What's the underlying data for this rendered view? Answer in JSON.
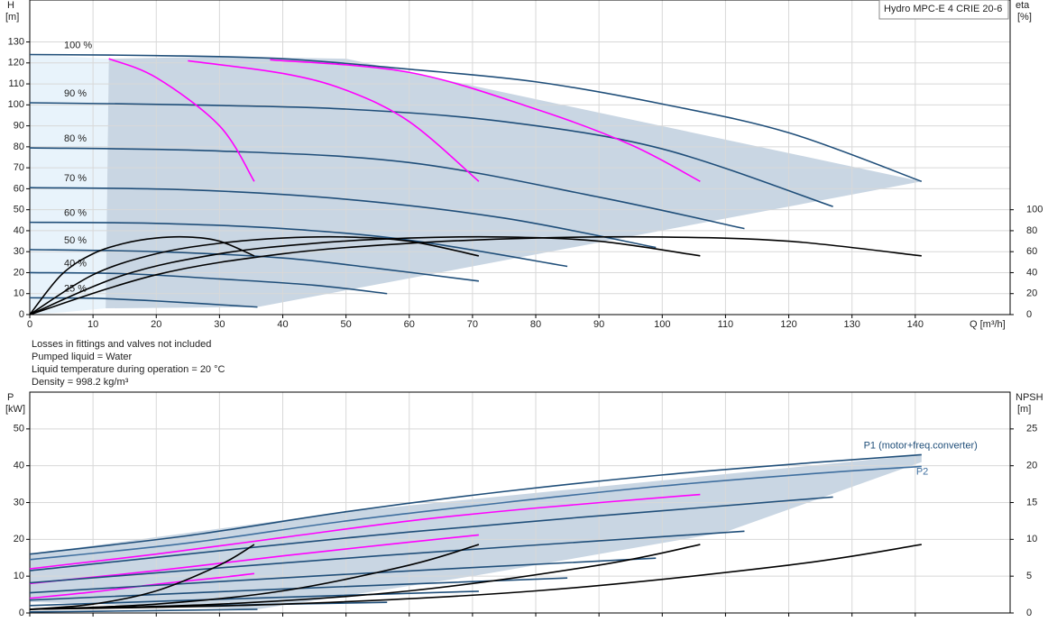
{
  "chart_data": [
    {
      "type": "line",
      "title": "Hydro MPC-E 4 CRIE 20-6",
      "ylabel": "H",
      "yunit": "[m]",
      "y2label": "eta",
      "y2unit": "[%]",
      "xlabel": "Q [m³/h]",
      "xlim": [
        0,
        155
      ],
      "xticks": [
        0,
        10,
        20,
        30,
        40,
        50,
        60,
        70,
        80,
        90,
        100,
        110,
        120,
        130,
        140
      ],
      "ylim": [
        0,
        150
      ],
      "yticks": [
        0,
        10,
        20,
        30,
        40,
        50,
        60,
        70,
        80,
        90,
        100,
        110,
        120,
        130
      ],
      "y2lim": [
        0,
        300
      ],
      "y2ticks": [
        0,
        20,
        40,
        60,
        80,
        100
      ],
      "grid": true,
      "show_xtick_labels": true,
      "areas": [
        {
          "color": "#e8f3fb",
          "x": [
            0,
            0,
            12.5,
            12,
            5
          ],
          "values": [
            0,
            124,
            122,
            3,
            1
          ]
        },
        {
          "color": "#c9d6e3",
          "x": [
            12,
            12.5,
            30,
            50,
            141,
            36,
            12
          ],
          "values": [
            3,
            122,
            123,
            122,
            63.5,
            3.6,
            3
          ]
        }
      ],
      "series": [
        {
          "name": "100 %",
          "color": "#1f4e79",
          "x": [
            0,
            20,
            40,
            60,
            80,
            100,
            120,
            141
          ],
          "values": [
            124,
            123.5,
            122,
            117,
            111,
            100.4,
            86.7,
            63.5
          ]
        },
        {
          "name": "90 %",
          "color": "#1f4e79",
          "x": [
            0,
            25,
            50,
            75,
            100,
            127
          ],
          "values": [
            101,
            100,
            98,
            92,
            79,
            51.5
          ]
        },
        {
          "name": "80 %",
          "color": "#1f4e79",
          "x": [
            0,
            30,
            60,
            90,
            113
          ],
          "values": [
            79.5,
            78,
            72.5,
            56,
            41
          ]
        },
        {
          "name": "70 %",
          "color": "#1f4e79",
          "x": [
            0,
            25,
            50,
            75,
            99
          ],
          "values": [
            60.5,
            59.5,
            55,
            46,
            32
          ]
        },
        {
          "name": "60 %",
          "color": "#1f4e79",
          "x": [
            0,
            20,
            40,
            60,
            85
          ],
          "values": [
            44,
            43.5,
            41,
            35.5,
            23
          ]
        },
        {
          "name": "50 %",
          "color": "#1f4e79",
          "x": [
            0,
            20,
            40,
            55,
            71
          ],
          "values": [
            31,
            30,
            27,
            22,
            16
          ]
        },
        {
          "name": "40 %",
          "color": "#1f4e79",
          "x": [
            0,
            15,
            30,
            45,
            56.5
          ],
          "values": [
            20,
            19.5,
            17,
            14,
            10
          ]
        },
        {
          "name": "25 %",
          "color": "#1f4e79",
          "x": [
            0,
            10,
            20,
            36
          ],
          "values": [
            8,
            7.8,
            6.5,
            3.6
          ]
        },
        {
          "color": "#ff00ff",
          "x": [
            12.5,
            20,
            30,
            35.5
          ],
          "values": [
            122,
            113,
            90,
            63.5
          ]
        },
        {
          "color": "#ff00ff",
          "x": [
            25,
            40,
            50,
            60,
            71
          ],
          "values": [
            121,
            115,
            107,
            92,
            63.5
          ]
        },
        {
          "color": "#ff00ff",
          "x": [
            38,
            60,
            80,
            95,
            106
          ],
          "values": [
            121.5,
            115.5,
            98,
            81,
            63.5
          ]
        },
        {
          "color": "#000000",
          "axis": "y2",
          "x": [
            0,
            5,
            10,
            15,
            20,
            25,
            30,
            35.5
          ],
          "values": [
            0,
            38,
            58,
            68,
            73,
            74,
            70,
            56
          ]
        },
        {
          "color": "#000000",
          "axis": "y2",
          "x": [
            0,
            10,
            20,
            30,
            40,
            50,
            60,
            71
          ],
          "values": [
            0,
            38,
            58,
            68,
            73,
            74,
            70,
            56
          ]
        },
        {
          "color": "#000000",
          "axis": "y2",
          "x": [
            0,
            15,
            30,
            45,
            60,
            75,
            90,
            106
          ],
          "values": [
            0,
            38,
            58,
            68,
            73,
            74,
            70,
            56
          ]
        },
        {
          "color": "#000000",
          "axis": "y2",
          "x": [
            0,
            20,
            40,
            60,
            80,
            100,
            120,
            141
          ],
          "values": [
            0,
            38,
            58,
            68,
            73,
            74,
            70,
            56
          ]
        }
      ]
    },
    {
      "type": "line",
      "ylabel": "P",
      "yunit": "[kW]",
      "y2label": "NPSH",
      "y2unit": "[m]",
      "xlim": [
        0,
        155
      ],
      "xticks": [
        0,
        10,
        20,
        30,
        40,
        50,
        60,
        70,
        80,
        90,
        100,
        110,
        120,
        130,
        140
      ],
      "ylim": [
        0,
        60
      ],
      "yticks": [
        0,
        10,
        20,
        30,
        40,
        50
      ],
      "y2lim": [
        0,
        30
      ],
      "y2ticks": [
        0,
        5,
        10,
        15,
        20,
        25
      ],
      "grid": true,
      "show_xtick_labels": false,
      "areas": [
        {
          "color": "#c9d6e3",
          "x": [
            0,
            0,
            50,
            141,
            141,
            110,
            70,
            36
          ],
          "values": [
            3,
            16,
            27.5,
            43,
            41,
            22,
            10,
            1
          ]
        }
      ],
      "series": [
        {
          "name": "P1 (motor+freq.converter)",
          "color": "#1f4e79",
          "x": [
            0,
            25,
            50,
            75,
            100,
            125,
            141
          ],
          "values": [
            16,
            21,
            27.5,
            33,
            37.5,
            41,
            43
          ]
        },
        {
          "name": "P2",
          "color": "#3f6f9f",
          "x": [
            0,
            25,
            50,
            75,
            100,
            125,
            141
          ],
          "values": [
            14.5,
            19,
            25,
            30,
            34.5,
            38,
            39.8
          ]
        },
        {
          "color": "#ff00ff",
          "x": [
            0,
            20,
            40,
            60,
            80,
            106
          ],
          "values": [
            12,
            16,
            20.5,
            25,
            28.5,
            32.2
          ]
        },
        {
          "color": "#ff00ff",
          "x": [
            0,
            20,
            40,
            56,
            71
          ],
          "values": [
            8,
            11.5,
            15.5,
            18.5,
            21.2
          ]
        },
        {
          "color": "#ff00ff",
          "x": [
            0,
            10,
            20,
            30,
            35.5
          ],
          "values": [
            4,
            5.7,
            7.8,
            9.6,
            10.7
          ]
        },
        {
          "color": "#1f4e79",
          "x": [
            0,
            60,
            127
          ],
          "values": [
            11.5,
            22,
            31.5
          ]
        },
        {
          "color": "#1f4e79",
          "x": [
            0,
            55,
            113
          ],
          "values": [
            8.2,
            15.5,
            22.2
          ]
        },
        {
          "color": "#1f4e79",
          "x": [
            0,
            50,
            99
          ],
          "values": [
            5.5,
            10.5,
            14.9
          ]
        },
        {
          "color": "#1f4e79",
          "x": [
            0,
            40,
            85
          ],
          "values": [
            3.5,
            6.5,
            9.5
          ]
        },
        {
          "color": "#1f4e79",
          "x": [
            0,
            35,
            71
          ],
          "values": [
            2,
            4,
            5.9
          ]
        },
        {
          "color": "#1f4e79",
          "x": [
            0,
            28,
            56.5
          ],
          "values": [
            1,
            2,
            2.9
          ]
        },
        {
          "color": "#1f4e79",
          "x": [
            0,
            18,
            36
          ],
          "values": [
            0.3,
            0.6,
            1
          ]
        },
        {
          "color": "#000000",
          "axis": "y2",
          "x": [
            0,
            10,
            20,
            30,
            35.5
          ],
          "values": [
            0.5,
            1.2,
            3,
            6.5,
            9.3
          ]
        },
        {
          "color": "#000000",
          "axis": "y2",
          "x": [
            0,
            20,
            40,
            60,
            71
          ],
          "values": [
            0.5,
            1.2,
            3,
            6.5,
            9.3
          ]
        },
        {
          "color": "#000000",
          "axis": "y2",
          "x": [
            0,
            30,
            60,
            90,
            106
          ],
          "values": [
            0.5,
            1.2,
            3,
            6.5,
            9.3
          ]
        },
        {
          "color": "#000000",
          "axis": "y2",
          "x": [
            0,
            40,
            80,
            120,
            141
          ],
          "values": [
            0.5,
            1.2,
            3,
            6.5,
            9.3
          ]
        }
      ]
    }
  ],
  "notes": [
    "Losses in fittings and valves not included",
    "Pumped liquid = Water",
    "Liquid temperature during operation = 20 °C",
    "Density = 998.2 kg/m³"
  ]
}
